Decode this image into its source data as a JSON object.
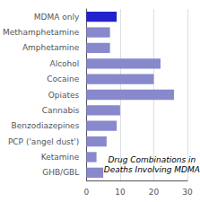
{
  "chart_data": {
    "type": "bar",
    "orientation": "horizontal",
    "categories": [
      "MDMA only",
      "Methamphetamine",
      "Amphetamine",
      "Alcohol",
      "Cocaine",
      "Opiates",
      "Cannabis",
      "Benzodiazepines",
      "PCP ('angel dust')",
      "Ketamine",
      "GHB/GBL"
    ],
    "values": [
      9,
      7,
      7,
      22,
      20,
      26,
      10,
      9,
      6,
      3,
      5
    ],
    "colors": [
      "#2222cc",
      "#8888cc",
      "#8888cc",
      "#8888cc",
      "#8888cc",
      "#8888cc",
      "#8888cc",
      "#8888cc",
      "#8888cc",
      "#8888cc",
      "#8888cc"
    ],
    "xlim": [
      0,
      30
    ],
    "xticks": [
      0,
      10,
      20,
      30
    ],
    "grid": true,
    "annotation": "Drug Combinations in\nDeaths Involving MDMA"
  }
}
